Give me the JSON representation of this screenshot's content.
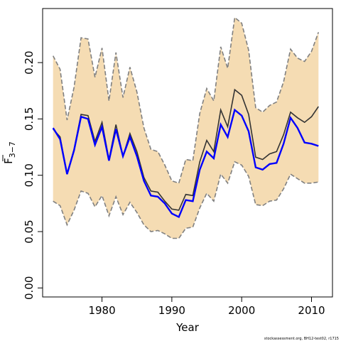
{
  "chart_data": {
    "type": "line",
    "xlabel": "Year",
    "ylabel": "F",
    "ylabel_sub": "3−7",
    "xlim": [
      1971.5,
      2013
    ],
    "ylim": [
      -0.008,
      0.248
    ],
    "xticks": [
      1980,
      1990,
      2000,
      2010
    ],
    "yticks": [
      0.0,
      0.05,
      0.1,
      0.15,
      0.2
    ],
    "ytick_labels": [
      "0.00",
      "0.05",
      "0.10",
      "0.15",
      "0.20"
    ],
    "grid": false,
    "footnote": "stockassessment.org, BH12-test02, r1715",
    "colors": {
      "band": "#f5dcb3",
      "band_edge": "#808080",
      "estimate": "#333333",
      "blue_series": "#0000ff"
    },
    "x": [
      1973,
      1974,
      1975,
      1976,
      1977,
      1978,
      1979,
      1980,
      1981,
      1982,
      1983,
      1984,
      1985,
      1986,
      1987,
      1988,
      1989,
      1990,
      1991,
      1992,
      1993,
      1994,
      1995,
      1996,
      1997,
      1998,
      1999,
      2000,
      2001,
      2002,
      2003,
      2004,
      2005,
      2006,
      2007,
      2008,
      2009,
      2010,
      2011
    ],
    "series": [
      {
        "role": "upper",
        "values": [
          0.206,
          0.194,
          0.149,
          0.178,
          0.222,
          0.221,
          0.187,
          0.213,
          0.166,
          0.209,
          0.169,
          0.196,
          0.174,
          0.142,
          0.123,
          0.121,
          0.109,
          0.095,
          0.093,
          0.114,
          0.113,
          0.155,
          0.177,
          0.166,
          0.214,
          0.195,
          0.24,
          0.235,
          0.211,
          0.16,
          0.156,
          0.162,
          0.165,
          0.183,
          0.212,
          0.204,
          0.201,
          0.21,
          0.227
        ]
      },
      {
        "role": "lower",
        "values": [
          0.077,
          0.073,
          0.056,
          0.069,
          0.086,
          0.084,
          0.072,
          0.082,
          0.064,
          0.081,
          0.065,
          0.076,
          0.067,
          0.056,
          0.05,
          0.051,
          0.048,
          0.044,
          0.044,
          0.053,
          0.054,
          0.071,
          0.084,
          0.077,
          0.101,
          0.093,
          0.112,
          0.109,
          0.099,
          0.074,
          0.073,
          0.077,
          0.078,
          0.088,
          0.101,
          0.097,
          0.093,
          0.093,
          0.094
        ]
      },
      {
        "role": "estimate",
        "values": [
          0.141,
          0.134,
          0.101,
          0.123,
          0.154,
          0.153,
          0.13,
          0.147,
          0.114,
          0.145,
          0.117,
          0.137,
          0.121,
          0.098,
          0.086,
          0.085,
          0.077,
          0.07,
          0.069,
          0.083,
          0.082,
          0.112,
          0.131,
          0.121,
          0.158,
          0.143,
          0.176,
          0.171,
          0.154,
          0.116,
          0.114,
          0.119,
          0.121,
          0.136,
          0.156,
          0.151,
          0.147,
          0.152,
          0.161
        ]
      },
      {
        "role": "blue",
        "values": [
          0.142,
          0.132,
          0.101,
          0.122,
          0.152,
          0.15,
          0.127,
          0.143,
          0.113,
          0.141,
          0.117,
          0.134,
          0.117,
          0.095,
          0.082,
          0.081,
          0.075,
          0.066,
          0.063,
          0.078,
          0.077,
          0.105,
          0.121,
          0.115,
          0.145,
          0.134,
          0.158,
          0.153,
          0.139,
          0.107,
          0.105,
          0.11,
          0.111,
          0.128,
          0.151,
          0.142,
          0.129,
          0.128,
          0.126
        ]
      }
    ]
  }
}
